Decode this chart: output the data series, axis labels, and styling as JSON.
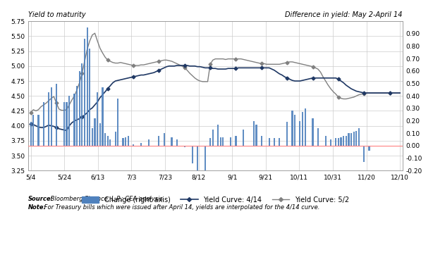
{
  "title_left": "Yield to maturity",
  "title_right": "Difference in yield: May 2-April 14",
  "xlabel_ticks": [
    "5/4",
    "5/24",
    "6/13",
    "7/3",
    "7/23",
    "8/12",
    "9/1",
    "9/21",
    "10/11",
    "10/31",
    "11/20",
    "12/10"
  ],
  "ylim_left": [
    3.25,
    5.75
  ],
  "ylim_right": [
    -0.2,
    1.0
  ],
  "yticks_left": [
    3.25,
    3.5,
    3.75,
    4.0,
    4.25,
    4.5,
    4.75,
    5.0,
    5.25,
    5.5,
    5.75
  ],
  "yticks_right": [
    -0.2,
    -0.1,
    0.0,
    0.1,
    0.2,
    0.3,
    0.4,
    0.5,
    0.6,
    0.7,
    0.8,
    0.9
  ],
  "source_text_bold": "Source:",
  "source_text_rest": " Bloomberg Finance, L.P.; CEA analysis.",
  "note_text_bold": "Note:",
  "note_text_rest": " For Treasury bills which were issued after April 14, yields are interpolated for the 4/14 curve.",
  "legend_labels": [
    "Change (right axis)",
    "Yield Curve: 4/14",
    "Yield Curve: 5/2"
  ],
  "bar_color": "#4F81BD",
  "line414_color": "#1F3864",
  "line52_color": "#808080",
  "zero_line_color": "#FF8080",
  "background_color": "#FFFFFF",
  "grid_color": "#CCCCCC",
  "n_points": 145,
  "yield414": [
    4.03,
    4.02,
    4.0,
    3.98,
    3.97,
    3.97,
    3.99,
    4.01,
    4.0,
    3.99,
    3.97,
    3.95,
    3.94,
    3.93,
    3.92,
    4.0,
    4.05,
    4.08,
    4.1,
    4.12,
    4.15,
    4.18,
    4.22,
    4.27,
    4.3,
    4.35,
    4.4,
    4.47,
    4.52,
    4.57,
    4.62,
    4.67,
    4.72,
    4.75,
    4.76,
    4.77,
    4.78,
    4.79,
    4.8,
    4.81,
    4.82,
    4.83,
    4.84,
    4.85,
    4.85,
    4.86,
    4.87,
    4.88,
    4.89,
    4.91,
    4.93,
    4.95,
    4.97,
    4.99,
    5.0,
    5.0,
    5.0,
    5.01,
    5.01,
    5.01,
    5.01,
    5.01,
    5.0,
    5.0,
    5.0,
    4.99,
    4.99,
    4.98,
    4.97,
    4.97,
    4.97,
    4.96,
    4.96,
    4.95,
    4.95,
    4.95,
    4.95,
    4.96,
    4.96,
    4.96,
    4.96,
    4.97,
    4.97,
    4.97,
    4.97,
    4.97,
    4.97,
    4.97,
    4.97,
    4.97,
    4.97,
    4.97,
    4.97,
    4.97,
    4.95,
    4.93,
    4.9,
    4.87,
    4.85,
    4.82,
    4.8,
    4.78,
    4.76,
    4.75,
    4.75,
    4.75,
    4.76,
    4.77,
    4.78,
    4.79,
    4.8,
    4.8,
    4.8,
    4.8,
    4.8,
    4.8,
    4.8,
    4.8,
    4.8,
    4.8,
    4.78,
    4.75,
    4.72,
    4.68,
    4.65,
    4.62,
    4.6,
    4.58,
    4.57,
    4.56,
    4.55,
    4.55,
    4.55,
    4.55,
    4.55,
    4.55,
    4.55,
    4.55,
    4.55,
    4.55,
    4.55,
    4.55,
    4.55,
    4.55,
    4.55
  ],
  "yield52": [
    4.22,
    4.27,
    4.25,
    4.27,
    4.32,
    4.35,
    4.38,
    4.42,
    4.46,
    4.49,
    4.38,
    4.28,
    4.26,
    4.26,
    4.27,
    4.35,
    4.43,
    4.5,
    4.6,
    4.72,
    4.88,
    5.08,
    5.28,
    5.42,
    5.52,
    5.55,
    5.42,
    5.3,
    5.22,
    5.15,
    5.1,
    5.08,
    5.06,
    5.05,
    5.05,
    5.06,
    5.05,
    5.04,
    5.03,
    5.02,
    5.01,
    5.01,
    5.01,
    5.02,
    5.02,
    5.03,
    5.04,
    5.05,
    5.06,
    5.07,
    5.08,
    5.09,
    5.1,
    5.1,
    5.09,
    5.08,
    5.06,
    5.04,
    5.02,
    5.0,
    4.97,
    4.93,
    4.88,
    4.84,
    4.8,
    4.77,
    4.75,
    4.74,
    4.74,
    4.74,
    5.03,
    5.1,
    5.12,
    5.12,
    5.12,
    5.12,
    5.11,
    5.12,
    5.12,
    5.12,
    5.12,
    5.12,
    5.12,
    5.11,
    5.1,
    5.09,
    5.08,
    5.07,
    5.06,
    5.05,
    5.04,
    5.04,
    5.03,
    5.03,
    5.03,
    5.03,
    5.03,
    5.03,
    5.04,
    5.05,
    5.06,
    5.07,
    5.07,
    5.06,
    5.05,
    5.04,
    5.03,
    5.02,
    5.01,
    5.0,
    4.99,
    4.97,
    4.95,
    4.9,
    4.82,
    4.75,
    4.68,
    4.62,
    4.57,
    4.53,
    4.48,
    4.46,
    4.45,
    4.45,
    4.46,
    4.47,
    4.48,
    4.5,
    4.52,
    4.53,
    4.54,
    4.55,
    4.55,
    4.55,
    4.55,
    4.55,
    4.55,
    4.55,
    4.55,
    4.55,
    4.55,
    4.55,
    4.55,
    4.55,
    4.55
  ],
  "bar_x": [
    0,
    1,
    3,
    5,
    7,
    8,
    10,
    13,
    14,
    15,
    17,
    18,
    19,
    20,
    21,
    22,
    23,
    24,
    25,
    26,
    27,
    28,
    29,
    30,
    31,
    33,
    34,
    36,
    37,
    38,
    40,
    43,
    46,
    50,
    52,
    55,
    57,
    60,
    63,
    65,
    68,
    70,
    71,
    73,
    74,
    75,
    78,
    80,
    83,
    87,
    88,
    90,
    93,
    95,
    97,
    100,
    102,
    103,
    105,
    106,
    107,
    110,
    112,
    115,
    117,
    119,
    120,
    121,
    122,
    123,
    124,
    125,
    126,
    127,
    128,
    130,
    132
  ],
  "bar_vals": [
    0.19,
    0.25,
    0.25,
    0.35,
    0.43,
    0.47,
    0.5,
    0.35,
    0.35,
    0.4,
    0.42,
    0.48,
    0.6,
    0.66,
    0.86,
    0.95,
    0.78,
    0.14,
    0.22,
    0.43,
    0.18,
    0.47,
    0.1,
    0.08,
    0.05,
    0.11,
    0.38,
    0.06,
    0.07,
    0.08,
    0.01,
    0.02,
    0.05,
    0.08,
    0.1,
    0.07,
    0.05,
    -0.01,
    -0.14,
    -0.22,
    -0.24,
    0.06,
    0.13,
    0.17,
    0.07,
    0.07,
    0.07,
    0.08,
    0.13,
    0.2,
    0.17,
    0.08,
    0.06,
    0.06,
    0.06,
    0.19,
    0.28,
    0.25,
    0.2,
    0.27,
    0.3,
    0.22,
    0.14,
    0.08,
    0.05,
    0.06,
    0.06,
    0.07,
    0.08,
    0.08,
    0.1,
    0.1,
    0.11,
    0.12,
    0.14,
    -0.13,
    -0.04
  ]
}
